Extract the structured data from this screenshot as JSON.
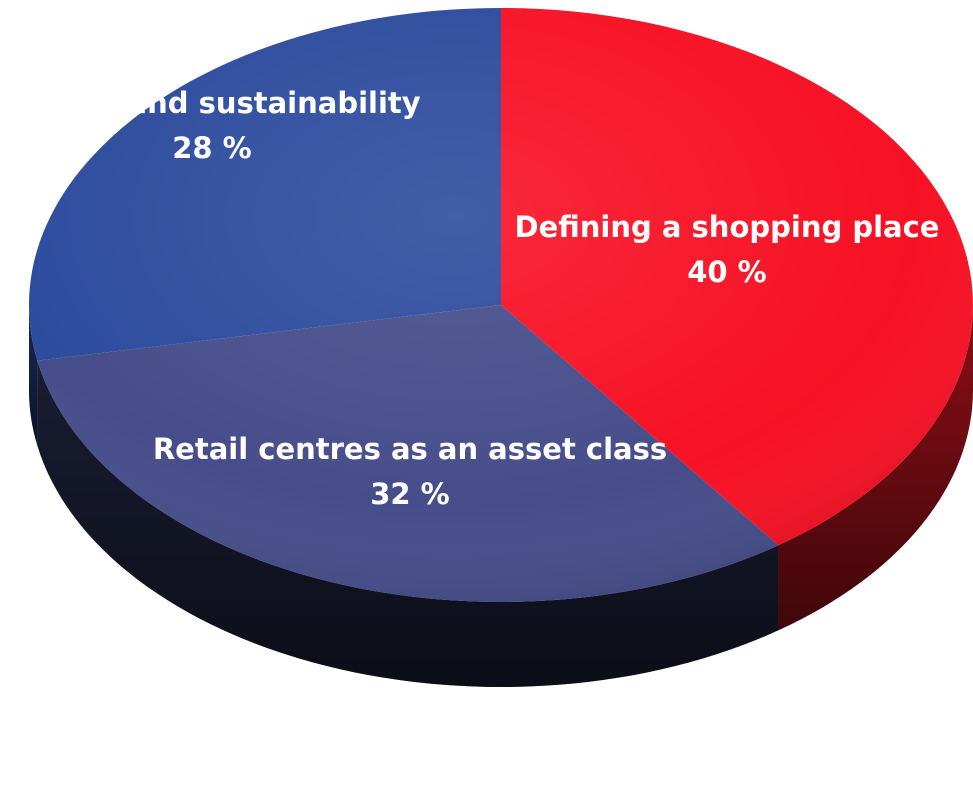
{
  "chart_data": {
    "type": "pie",
    "title": "",
    "legend": "none",
    "slices": [
      {
        "label": "Defining a shopping place",
        "value": 40,
        "value_label": "40 %",
        "color": "#f71124",
        "side_color": "#8b0f16"
      },
      {
        "label": "Retail centres as an asset class",
        "value": 32,
        "value_label": "32 %",
        "color": "#464d8a",
        "side_color": "#1a1d33"
      },
      {
        "label": "Energy and sustainability",
        "value": 28,
        "value_label": "28 %",
        "color": "#2e4c9e",
        "side_color": "#1a2a55"
      }
    ]
  }
}
